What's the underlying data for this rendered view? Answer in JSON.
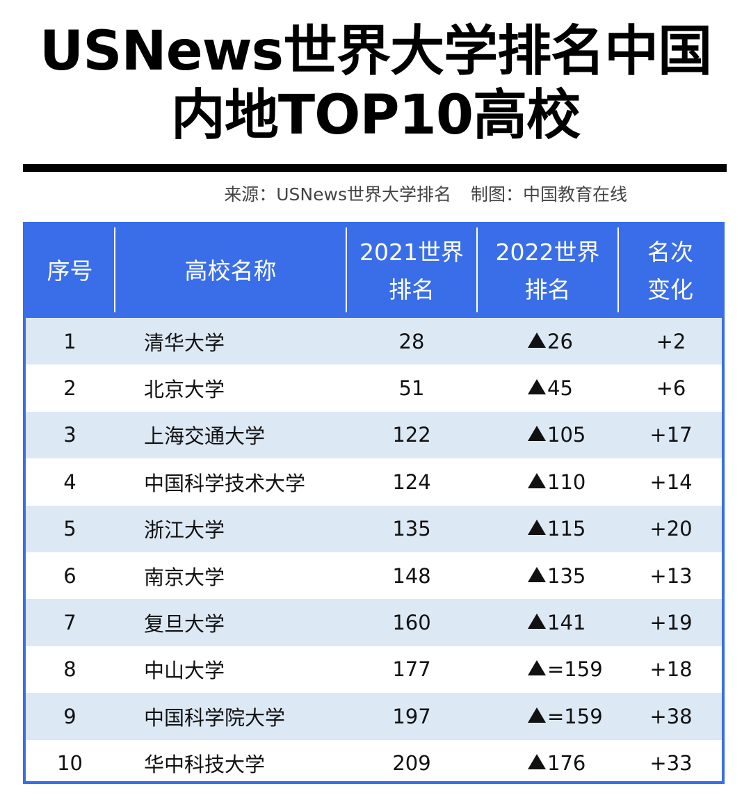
{
  "title": {
    "line1": "USNews世界大学排名中国",
    "line2": "内地TOP10高校"
  },
  "source": {
    "origin": "来源：USNews世界大学排名",
    "chart_by": "制图：中国教育在线"
  },
  "table": {
    "headers": {
      "index": "序号",
      "name": "高校名称",
      "rank2021_line1": "2021世界",
      "rank2021_line2": "排名",
      "rank2022_line1": "2022世界",
      "rank2022_line2": "排名",
      "change_line1": "名次",
      "change_line2": "变化"
    },
    "rows": [
      {
        "index": "1",
        "name": "清华大学",
        "rank2021": "28",
        "rank2022": "26",
        "change": "+2"
      },
      {
        "index": "2",
        "name": "北京大学",
        "rank2021": "51",
        "rank2022": "45",
        "change": "+6"
      },
      {
        "index": "3",
        "name": "上海交通大学",
        "rank2021": "122",
        "rank2022": "105",
        "change": "+17"
      },
      {
        "index": "4",
        "name": "中国科学技术大学",
        "rank2021": "124",
        "rank2022": "110",
        "change": "+14"
      },
      {
        "index": "5",
        "name": "浙江大学",
        "rank2021": "135",
        "rank2022": "115",
        "change": "+20"
      },
      {
        "index": "6",
        "name": "南京大学",
        "rank2021": "148",
        "rank2022": "135",
        "change": "+13"
      },
      {
        "index": "7",
        "name": "复旦大学",
        "rank2021": "160",
        "rank2022": "141",
        "change": "+19"
      },
      {
        "index": "8",
        "name": "中山大学",
        "rank2021": "177",
        "rank2022": "=159",
        "change": "+18"
      },
      {
        "index": "9",
        "name": "中国科学院大学",
        "rank2021": "197",
        "rank2022": "=159",
        "change": "+38"
      },
      {
        "index": "10",
        "name": "华中科技大学",
        "rank2021": "209",
        "rank2022": "176",
        "change": "+33"
      }
    ]
  },
  "colors": {
    "header_bg": "#3a6ee8",
    "stripe": "#dde8f5",
    "rule": "#000000"
  },
  "icons": {
    "rank_up": "up-triangle-icon"
  }
}
